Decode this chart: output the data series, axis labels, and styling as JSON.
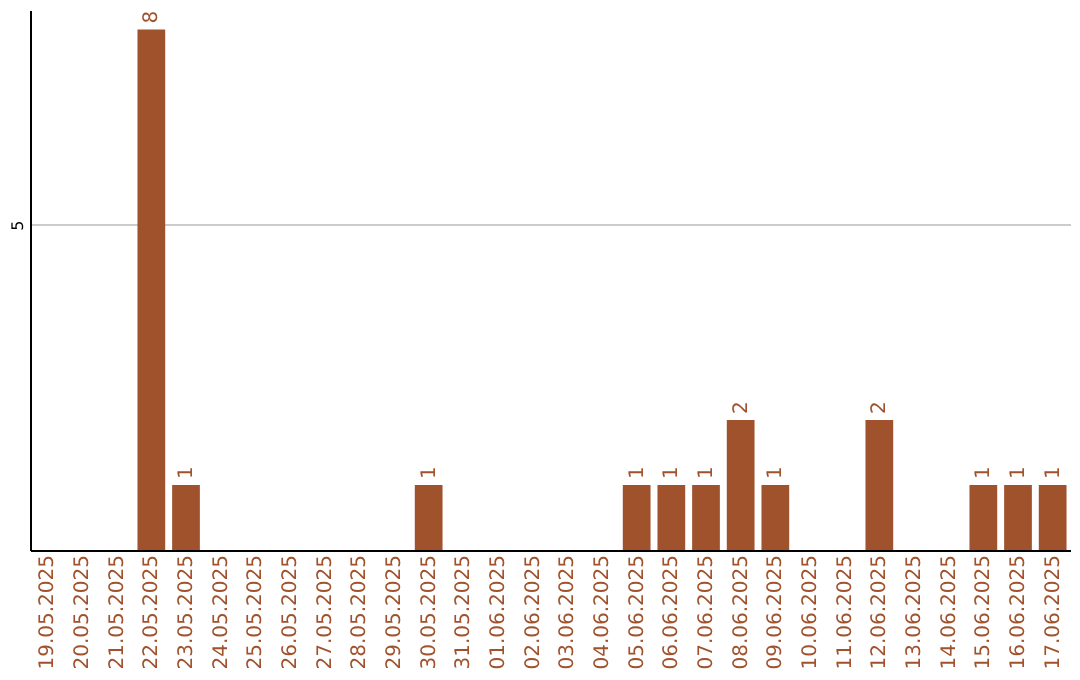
{
  "chart_data": {
    "type": "bar",
    "categories": [
      "19.05.2025",
      "20.05.2025",
      "21.05.2025",
      "22.05.2025",
      "23.05.2025",
      "24.05.2025",
      "25.05.2025",
      "26.05.2025",
      "27.05.2025",
      "28.05.2025",
      "29.05.2025",
      "30.05.2025",
      "31.05.2025",
      "01.06.2025",
      "02.06.2025",
      "03.06.2025",
      "04.06.2025",
      "05.06.2025",
      "06.06.2025",
      "07.06.2025",
      "08.06.2025",
      "09.06.2025",
      "10.06.2025",
      "11.06.2025",
      "12.06.2025",
      "13.06.2025",
      "14.06.2025",
      "15.06.2025",
      "16.06.2025",
      "17.06.2025"
    ],
    "values": [
      0,
      0,
      0,
      8,
      1,
      0,
      0,
      0,
      0,
      0,
      0,
      1,
      0,
      0,
      0,
      0,
      0,
      1,
      1,
      1,
      2,
      1,
      0,
      0,
      2,
      0,
      0,
      1,
      1,
      1
    ],
    "value_labels": [
      null,
      null,
      null,
      "8",
      "1",
      null,
      null,
      null,
      null,
      null,
      null,
      "1",
      null,
      null,
      null,
      null,
      null,
      "1",
      "1",
      "1",
      "2",
      "1",
      null,
      null,
      "2",
      null,
      null,
      "1",
      "1",
      "1"
    ],
    "color": "#a0522d",
    "ylim": [
      0,
      8.3
    ],
    "yticks": [
      5
    ],
    "grid": "y"
  }
}
